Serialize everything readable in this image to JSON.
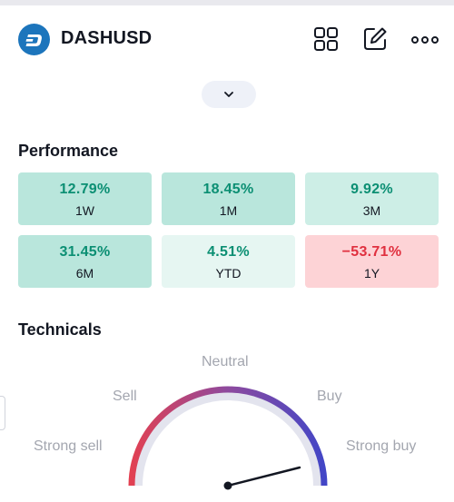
{
  "header": {
    "symbol": "DASHUSD",
    "logo_icon": "dash-logo-icon",
    "actions": [
      "grid-icon",
      "edit-icon",
      "more-icon"
    ]
  },
  "expand_icon": "chevron-down-icon",
  "performance": {
    "title": "Performance",
    "tiles": [
      {
        "value": "12.79%",
        "period": "1W",
        "bg": "#b9e6dc",
        "color": "#0b8f73"
      },
      {
        "value": "18.45%",
        "period": "1M",
        "bg": "#b9e6dc",
        "color": "#0b8f73"
      },
      {
        "value": "9.92%",
        "period": "3M",
        "bg": "#cdeee6",
        "color": "#0b8f73"
      },
      {
        "value": "31.45%",
        "period": "6M",
        "bg": "#b9e6dc",
        "color": "#0b8f73"
      },
      {
        "value": "4.51%",
        "period": "YTD",
        "bg": "#e6f6f2",
        "color": "#0b8f73"
      },
      {
        "value": "−53.71%",
        "period": "1Y",
        "bg": "#fdd3d6",
        "color": "#e0303f"
      }
    ]
  },
  "technicals": {
    "title": "Technicals",
    "labels": {
      "strong_sell": "Strong sell",
      "sell": "Sell",
      "neutral": "Neutral",
      "buy": "Buy",
      "strong_buy": "Strong buy"
    },
    "colors": {
      "sell": "#e5404f",
      "neutral": "#8e4a9e",
      "buy": "#3f46c8",
      "track": "#e3e4ee",
      "needle": "#131722"
    }
  }
}
